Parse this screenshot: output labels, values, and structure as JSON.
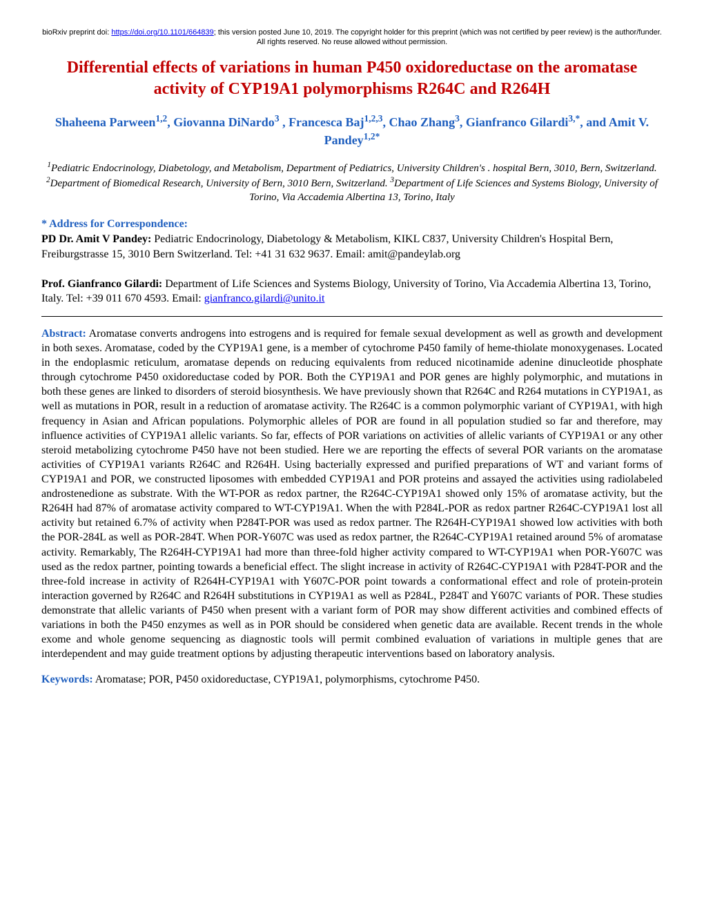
{
  "preprint": {
    "prefix": "bioRxiv preprint doi: ",
    "doi_url": "https://doi.org/10.1101/664839",
    "suffix": "; this version posted June 10, 2019. The copyright holder for this preprint (which was not certified by peer review) is the author/funder. All rights reserved. No reuse allowed without permission."
  },
  "title": "Differential effects of variations in human P450 oxidoreductase on the aromatase activity of CYP19A1 polymorphisms R264C and R264H",
  "authors_html": "Shaheena Parween<sup>1,2</sup>, Giovanna DiNardo<sup>3</sup> , Francesca Baj<sup>1,2,3</sup>, Chao Zhang<sup>3</sup>, Gianfranco Gilardi<sup>3,*</sup>, and Amit V. Pandey<sup>1,2*</sup>",
  "affiliations_html": "<sup>1</sup>Pediatric Endocrinology, Diabetology, and Metabolism, Department of Pediatrics, University Children's . hospital Bern, 3010, Bern, Switzerland. <sup>2</sup>Department of Biomedical Research, University of Bern, 3010 Bern, Switzerland. <sup>3</sup>Department of Life Sciences and Systems Biology, University of Torino, Via Accademia Albertina 13, Torino, Italy",
  "corr_label": "* Address for Correspondence:",
  "corr1": {
    "name": "PD Dr. Amit V Pandey:",
    "text": " Pediatric Endocrinology, Diabetology & Metabolism, KIKL C837, University Children's Hospital Bern, Freiburgstrasse 15, 3010 Bern Switzerland. Tel:  +41 31 632 9637. Email: amit@pandeylab.org"
  },
  "corr2": {
    "name": "Prof. Gianfranco Gilardi:",
    "text": " Department of Life Sciences and Systems Biology, University of Torino, Via Accademia Albertina 13, Torino, Italy. Tel: +39 011 670 4593. Email: ",
    "email": "gianfranco.gilardi@unito.it"
  },
  "abstract_label": "Abstract:",
  "abstract": " Aromatase converts androgens into estrogens and is required for female sexual development as well as growth and development in both sexes. Aromatase, coded by the CYP19A1 gene, is a member of cytochrome P450 family of heme-thiolate monoxygenases. Located in the endoplasmic reticulum, aromatase depends on reducing equivalents from reduced nicotinamide adenine dinucleotide phosphate through cytochrome P450 oxidoreductase coded by POR. Both the CYP19A1 and POR genes are highly polymorphic, and mutations in both these genes are linked to disorders of steroid biosynthesis. We have previously shown that R264C and R264 mutations in CYP19A1, as well as mutations in POR, result in a reduction of aromatase activity. The R264C is a common polymorphic variant of CYP19A1, with high frequency in Asian and African populations. Polymorphic alleles of POR are found in all population studied so far and therefore, may influence activities of CYP19A1 allelic variants. So far, effects of POR variations on activities of allelic variants of CYP19A1 or any other steroid metabolizing cytochrome P450 have not been studied. Here we are reporting the effects of several POR variants on the aromatase activities of CYP19A1 variants R264C and R264H.  Using bacterially expressed and purified preparations of WT and variant forms of CYP19A1 and POR, we constructed liposomes with embedded CYP19A1 and POR proteins and assayed the activities using radiolabeled androstenedione as substrate.  With the WT-POR as redox partner, the R264C-CYP19A1 showed only 15% of aromatase activity, but the R264H had 87% of aromatase activity compared to WT-CYP19A1. When the with P284L-POR as redox partner R264C-CYP19A1 lost all activity but retained 6.7% of activity when P284T-POR was used as redox partner. The R264H-CYP19A1 showed low activities with both the POR-284L as well as POR-284T. When POR-Y607C was used as redox partner, the R264C-CYP19A1 retained around 5% of aromatase activity. Remarkably, The R264H-CYP19A1 had more than three-fold higher activity compared to WT-CYP19A1 when POR-Y607C was used as the redox partner, pointing towards a beneficial effect. The slight increase in activity of R264C-CYP19A1 with P284T-POR and the three-fold increase in activity of R264H-CYP19A1 with Y607C-POR point towards a conformational effect and role of protein-protein interaction governed by R264C and R264H substitutions in CYP19A1 as well as P284L, P284T and Y607C variants of POR. These studies demonstrate that allelic variants of P450 when present with a variant form of POR may show different activities and combined effects of variations in both the P450 enzymes as well as in POR should be considered when genetic data are available. Recent trends in the whole exome and whole genome sequencing as diagnostic tools will permit combined evaluation of variations in multiple genes that are interdependent and may guide treatment options by adjusting therapeutic interventions based on laboratory analysis.",
  "keywords_label": "Keywords:",
  "keywords": " Aromatase; POR, P450 oxidoreductase, CYP19A1, polymorphisms, cytochrome P450."
}
